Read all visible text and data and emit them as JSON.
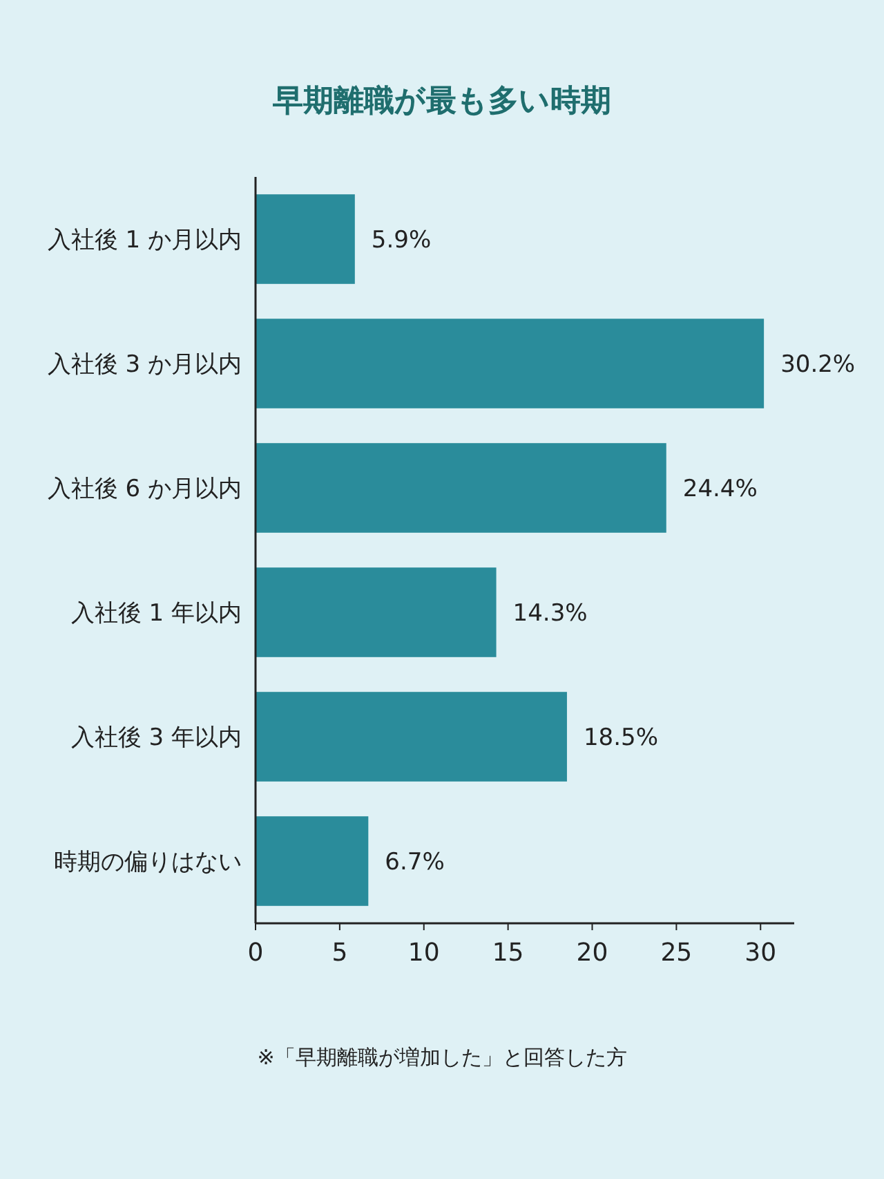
{
  "chart_data": {
    "type": "bar",
    "orientation": "horizontal",
    "title": "早期離職が最も多い時期",
    "categories": [
      "入社後 1 か月以内",
      "入社後 3 か月以内",
      "入社後 6 か月以内",
      "入社後 1 年以内",
      "入社後 3 年以内",
      "時期の偏りはない"
    ],
    "values": [
      5.9,
      30.2,
      24.4,
      14.3,
      18.5,
      6.7
    ],
    "value_labels": [
      "5.9%",
      "30.2%",
      "24.4%",
      "14.3%",
      "18.5%",
      "6.7%"
    ],
    "color": "#2a8c9b",
    "xlim": [
      0,
      32
    ],
    "xticks": [
      0,
      5,
      10,
      15,
      20,
      25,
      30
    ],
    "grid": false,
    "annotations": [
      "※「早期離職が増加した」と回答した方"
    ]
  }
}
